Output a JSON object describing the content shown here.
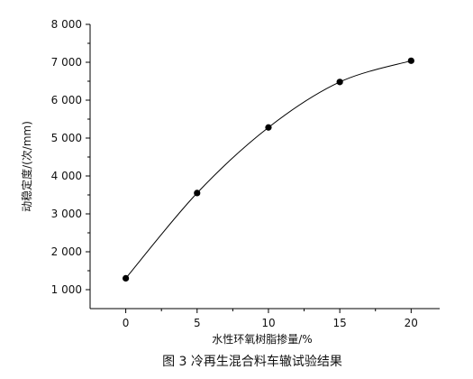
{
  "chart_data": {
    "type": "line",
    "caption": "图 3  冷再生混合料车辙试验结果",
    "xlabel": "水性环氧树脂掺量/%",
    "ylabel": "动稳定度/(次/mm)",
    "x": [
      0,
      5,
      10,
      15,
      20
    ],
    "series": [
      {
        "values": [
          1300,
          3550,
          5280,
          6480,
          7040
        ]
      }
    ],
    "xlim": [
      -2.5,
      22
    ],
    "ylim": [
      500,
      8000
    ],
    "xticks": [
      0,
      5,
      10,
      15,
      20
    ],
    "xtick_labels": [
      "0",
      "5",
      "10",
      "15",
      "20"
    ],
    "yticks": [
      1000,
      2000,
      3000,
      4000,
      5000,
      6000,
      7000,
      8000
    ],
    "ytick_labels": [
      "1 000",
      "2 000",
      "3 000",
      "4 000",
      "5 000",
      "6 000",
      "7 000",
      "8 000"
    ],
    "grid": false,
    "legend": "none",
    "line_color": "#000000",
    "marker_color": "#000000"
  }
}
